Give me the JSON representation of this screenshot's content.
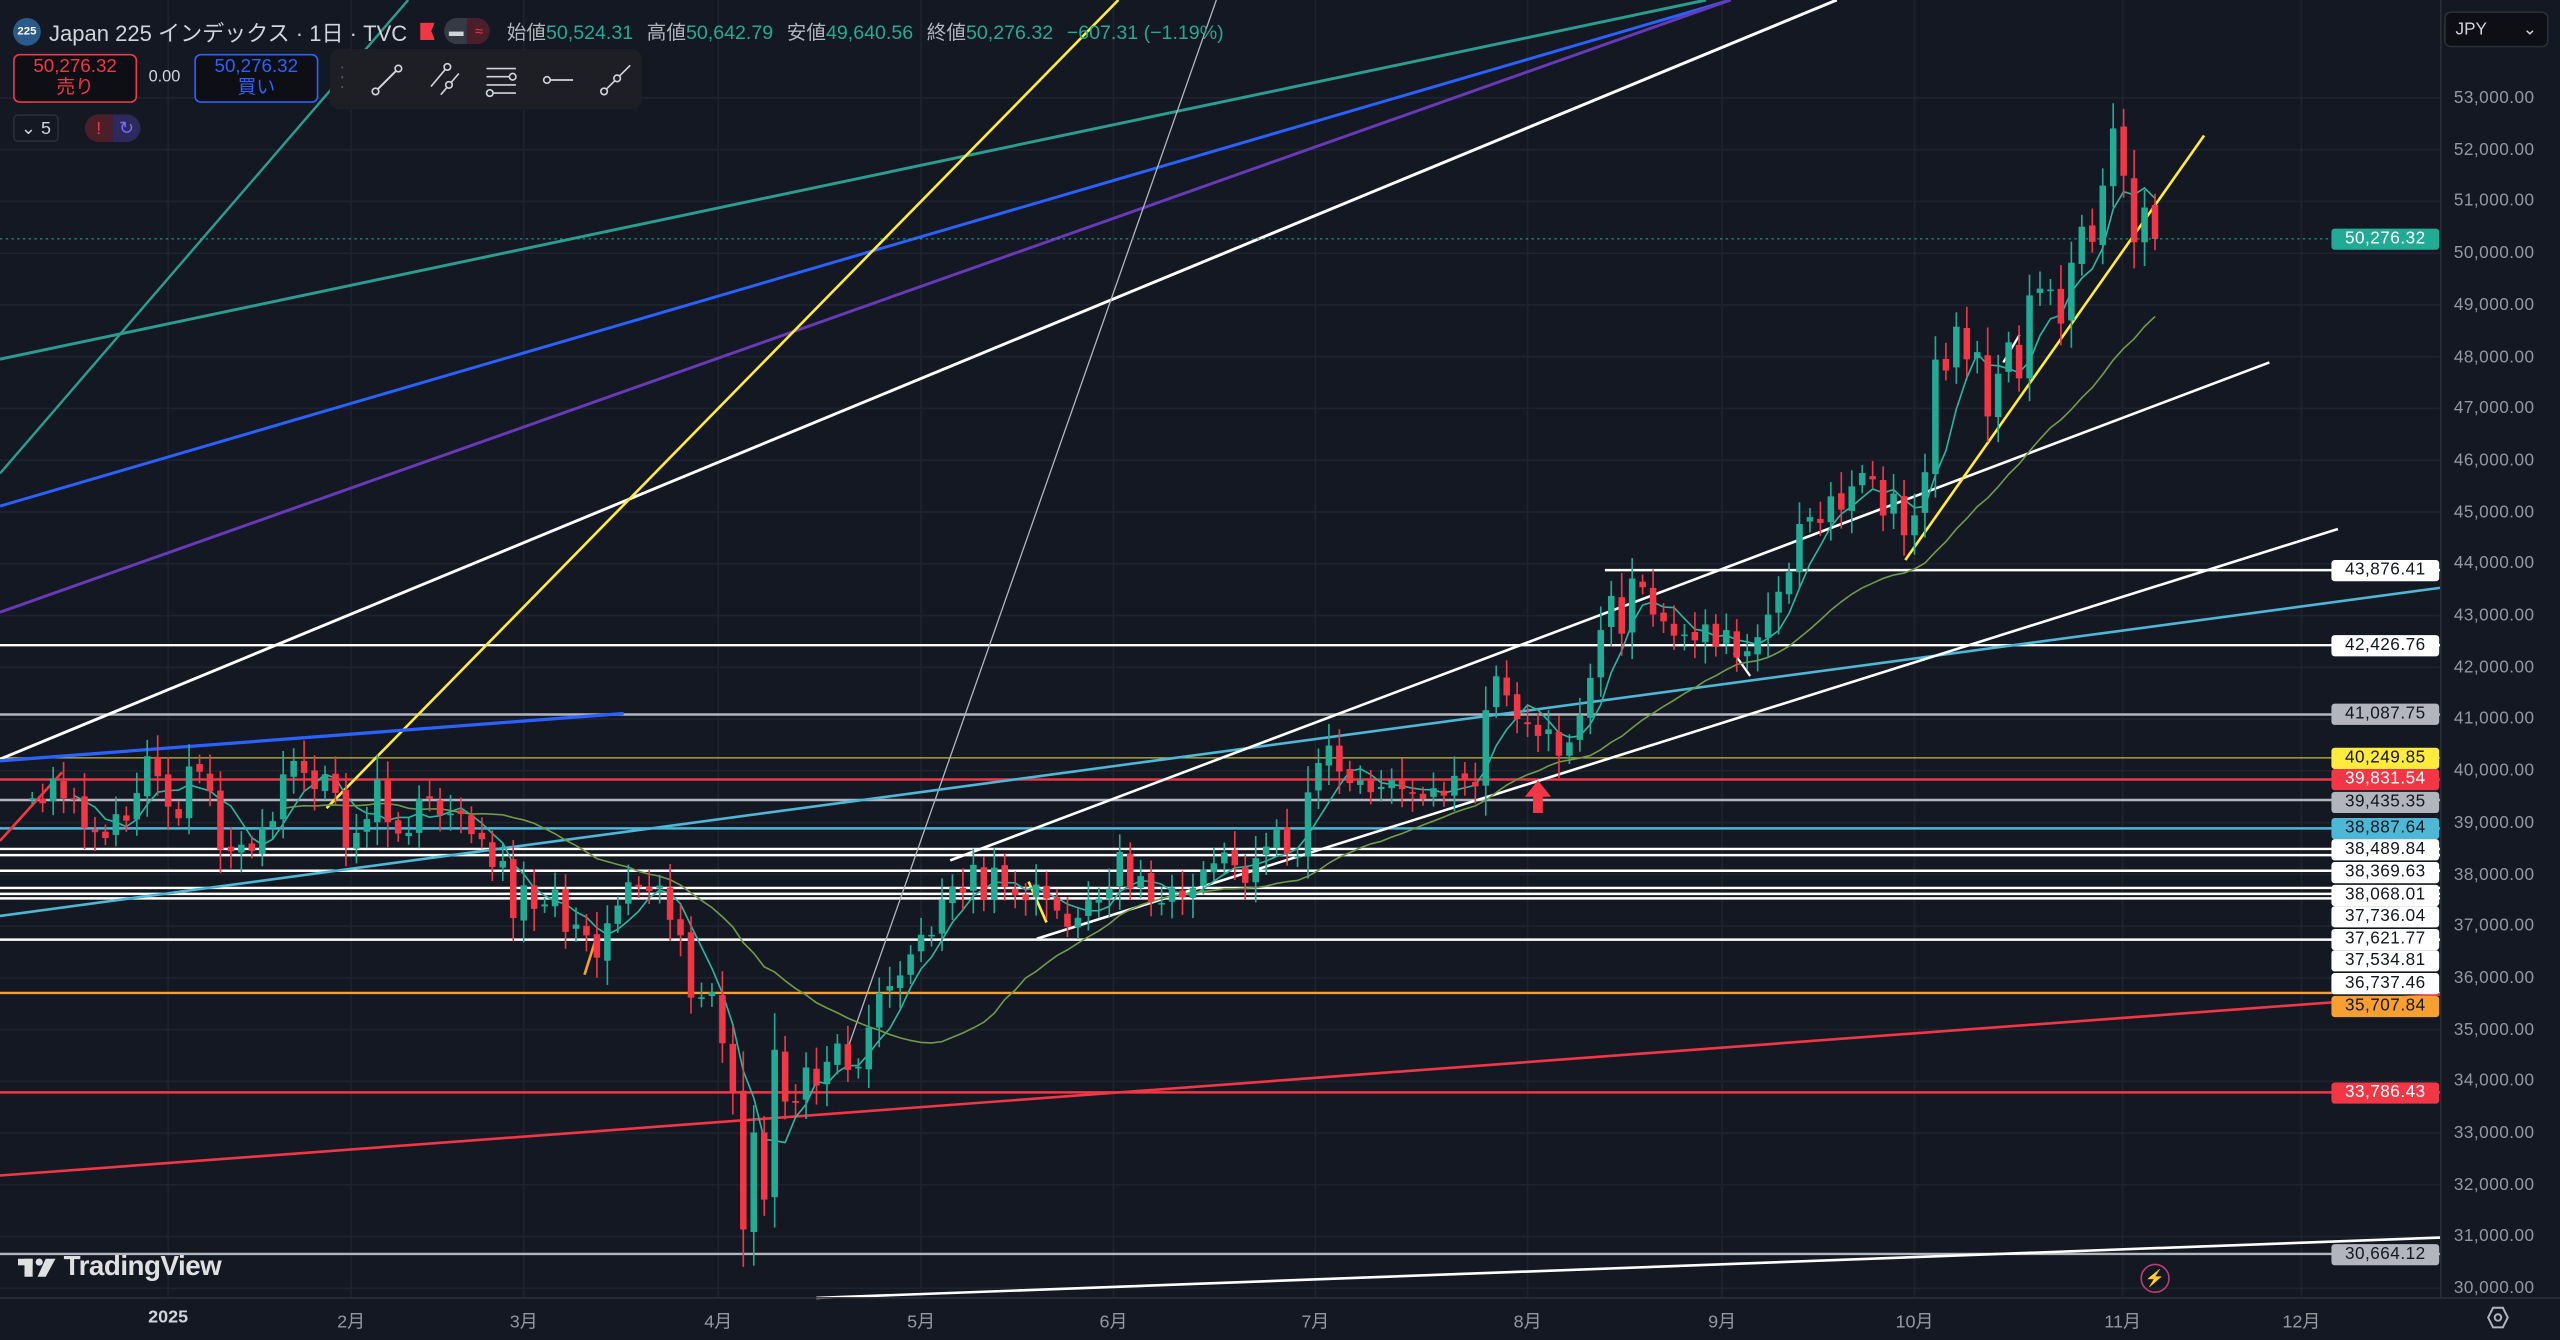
{
  "header": {
    "symbol_badge": "225",
    "title": "Japan 225 インデックス · 1日 · TVC",
    "ohlc": {
      "open_label": "始値",
      "open": "50,524.31",
      "high_label": "高値",
      "high": "50,642.79",
      "low_label": "安値",
      "low": "49,640.56",
      "close_label": "終値",
      "close": "50,276.32",
      "change": "−607.31 (−1.19%)"
    }
  },
  "trade": {
    "sell_price": "50,276.32",
    "sell_label": "売り",
    "spread": "0.00",
    "buy_price": "50,276.32",
    "buy_label": "買い"
  },
  "drawing_toolbar": [
    "drag-handle",
    "trend-line",
    "parallel-channel",
    "fib-retracement",
    "horizontal-ray",
    "ray"
  ],
  "indicators_collapse": "5",
  "currency": "JPY",
  "watermark": "TradingView",
  "colors": {
    "up": "#22ab94",
    "down": "#f23645",
    "ma_fast": "#2bb6a0",
    "ma_slow": "#6f9a4a",
    "background": "#141823"
  },
  "chart_data": {
    "type": "candlestick",
    "symbol": "Japan 225",
    "interval": "1D",
    "current_price": 50276.32,
    "current_price_label": "50,276.32",
    "ylim": [
      29800,
      53800
    ],
    "y_ticks": [
      "53,000.00",
      "52,000.00",
      "51,000.00",
      "50,000.00",
      "49,000.00",
      "48,000.00",
      "47,000.00",
      "46,000.00",
      "45,000.00",
      "44,000.00",
      "43,000.00",
      "42,000.00",
      "41,000.00",
      "40,000.00",
      "39,000.00",
      "38,000.00",
      "37,000.00",
      "36,000.00",
      "35,000.00",
      "34,000.00",
      "33,000.00",
      "32,000.00",
      "31,000.00",
      "30,000.00"
    ],
    "x_labels": [
      {
        "label": "2025",
        "index": 13
      },
      {
        "label": "2月",
        "index": 30.5
      },
      {
        "label": "3月",
        "index": 47
      },
      {
        "label": "4月",
        "index": 65.6
      },
      {
        "label": "5月",
        "index": 85
      },
      {
        "label": "6月",
        "index": 103.4
      },
      {
        "label": "7月",
        "index": 122.7
      },
      {
        "label": "8月",
        "index": 143
      },
      {
        "label": "9月",
        "index": 161.6
      },
      {
        "label": "10月",
        "index": 180
      },
      {
        "label": "11月",
        "index": 199.9
      },
      {
        "label": "12月",
        "index": 217
      }
    ],
    "closes": [
      39470,
      39372,
      39849,
      39470,
      39457,
      38895,
      38813,
      38701,
      39161,
      39036,
      39568,
      40281,
      39894,
      39307,
      39083,
      40083,
      39981,
      39605,
      38474,
      38444,
      38572,
      38451,
      38903,
      39027,
      39931,
      40190,
      39958,
      39646,
      39931,
      39572,
      38520,
      38798,
      39066,
      39831,
      39006,
      38787,
      38801,
      39460,
      39463,
      39149,
      39174,
      39164,
      38776,
      38678,
      38142,
      38256,
      37155,
      37785,
      37331,
      37418,
      37705,
      36887,
      37028,
      36819,
      36390,
      37053,
      37396,
      37845,
      37751,
      37677,
      37780,
      37120,
      36820,
      35617,
      35624,
      35725,
      34735,
      33780,
      31136,
      33012,
      31714,
      34609,
      33608,
      33585,
      34267,
      33920,
      34377,
      34730,
      34220,
      34280,
      35039,
      35705,
      35840,
      36045,
      36452,
      36831,
      36830,
      37503,
      37753,
      37644,
      38183,
      37503,
      38128,
      37755,
      37600,
      37498,
      37800,
      37529,
      37298,
      36986,
      37160,
      37500,
      37531,
      37724,
      38432,
      37722,
      37965,
      37470,
      37446,
      37747,
      37554,
      37741,
      38088,
      38211,
      38421,
      38173,
      37834,
      38311,
      38536,
      38885,
      38403,
      38354,
      39584,
      40150,
      40487,
      39986,
      39762,
      39810,
      39587,
      39688,
      39821,
      39646,
      39569,
      39459,
      39663,
      39520,
      39901,
      39819,
      39700,
      41171,
      41826,
      41456,
      40998,
      40900,
      40674,
      40799,
      40290,
      40549,
      41059,
      41794,
      42718,
      43378,
      42649,
      43714,
      43546,
      43019,
      42888,
      42610,
      42633,
      42520,
      42828,
      42394,
      42718,
      42188,
      42310,
      42580,
      43018,
      43459,
      43837,
      44768,
      44902,
      44790,
      45303,
      45045,
      45494,
      45754,
      45630,
      44932,
      45355,
      44550,
      44936,
      45769,
      47944,
      47734,
      48580,
      47950,
      48088,
      46847,
      47672,
      48277,
      47582,
      49185,
      49316,
      49299,
      48641,
      49816,
      50512,
      50219,
      51307,
      52411,
      51497,
      50212,
      50883,
      50276.32
    ],
    "moving_averages": [
      {
        "name": "MA fast",
        "period": 5
      },
      {
        "name": "MA slow",
        "period": 25
      }
    ],
    "levels": [
      {
        "price": 43876.41,
        "label": "43,876.41",
        "line": "#ffffff",
        "bg": "#ffffff",
        "fg": "#131722"
      },
      {
        "price": 42426.76,
        "label": "42,426.76",
        "line": "#ffffff",
        "bg": "#ffffff",
        "fg": "#131722"
      },
      {
        "price": 41087.75,
        "label": "41,087.75",
        "line": "#b2b5be",
        "bg": "#b2b5be",
        "fg": "#131722"
      },
      {
        "price": 40249.85,
        "label": "40,249.85",
        "line": "#c9b83a",
        "bg": "#ffeb3b",
        "fg": "#131722"
      },
      {
        "price": 39831.54,
        "label": "39,831.54",
        "line": "#f23645",
        "bg": "#f23645",
        "fg": "#ffffff"
      },
      {
        "price": 39435.35,
        "label": "39,435.35",
        "line": "#b2b5be",
        "bg": "#b2b5be",
        "fg": "#131722"
      },
      {
        "price": 38887.64,
        "label": "38,887.64",
        "line": "#4cb8d6",
        "bg": "#4cb8d6",
        "fg": "#131722"
      },
      {
        "price": 38489.84,
        "label": "38,489.84",
        "line": "#ffffff",
        "bg": "#ffffff",
        "fg": "#131722"
      },
      {
        "price": 38369.63,
        "label": "38,369.63",
        "line": "#ffffff",
        "bg": "#ffffff",
        "fg": "#131722"
      },
      {
        "price": 38068.01,
        "label": "38,068.01",
        "line": "#ffffff",
        "bg": "#ffffff",
        "fg": "#131722"
      },
      {
        "price": 37736.04,
        "label": "37,736.04",
        "line": "#ffffff",
        "bg": "#ffffff",
        "fg": "#131722"
      },
      {
        "price": 37621.77,
        "label": "37,621.77",
        "line": "#ffffff",
        "bg": "#ffffff",
        "fg": "#131722"
      },
      {
        "price": 37534.81,
        "label": "37,534.81",
        "line": "#ffffff",
        "bg": "#ffffff",
        "fg": "#131722"
      },
      {
        "price": 36737.46,
        "label": "36,737.46",
        "line": "#ffffff",
        "bg": "#ffffff",
        "fg": "#131722"
      },
      {
        "price": 35707.84,
        "label": "35,707.84",
        "line": "#f7a030",
        "bg": "#f7a030",
        "fg": "#131722"
      },
      {
        "price": 33786.43,
        "label": "33,786.43",
        "line": "#f23645",
        "bg": "#f23645",
        "fg": "#ffffff"
      },
      {
        "price": 30664.12,
        "label": "30,664.12",
        "line": "#b2b5be",
        "bg": "#b2b5be",
        "fg": "#131722"
      }
    ]
  }
}
